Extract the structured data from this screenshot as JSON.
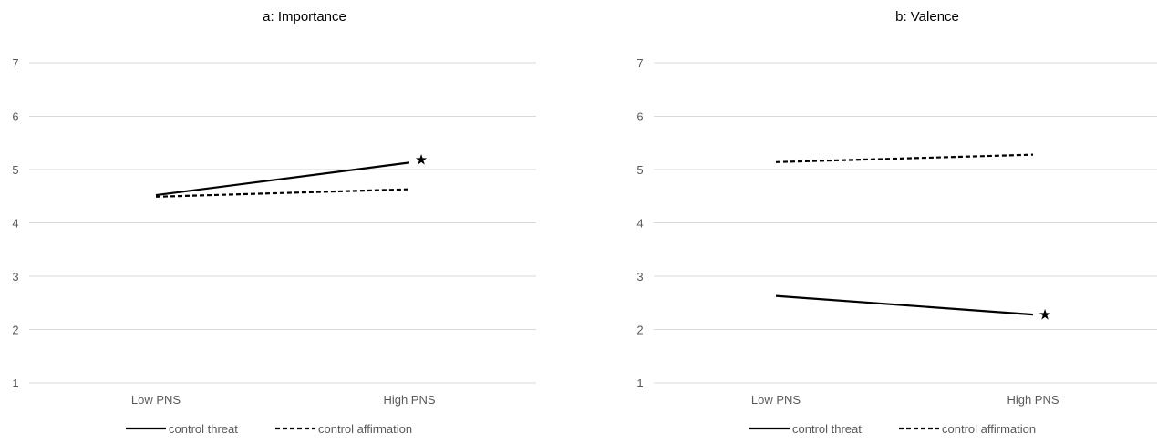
{
  "chart_data": [
    {
      "type": "line",
      "title": "a: Importance",
      "categories": [
        "Low PNS",
        "High PNS"
      ],
      "ylim": [
        1,
        7
      ],
      "yticks": [
        1,
        2,
        3,
        4,
        5,
        6,
        7
      ],
      "grid": true,
      "legend_position": "bottom",
      "series": [
        {
          "name": "control threat",
          "values": [
            4.52,
            5.13
          ],
          "style": "solid",
          "color": "#000000"
        },
        {
          "name": "control affirmation",
          "values": [
            4.49,
            4.63
          ],
          "style": "dashed",
          "color": "#000000"
        }
      ],
      "annotations": [
        {
          "text": "★",
          "category": "High PNS",
          "y": 5.2
        }
      ]
    },
    {
      "type": "line",
      "title": "b: Valence",
      "categories": [
        "Low PNS",
        "High PNS"
      ],
      "ylim": [
        1,
        7
      ],
      "yticks": [
        1,
        2,
        3,
        4,
        5,
        6,
        7
      ],
      "grid": true,
      "legend_position": "bottom",
      "series": [
        {
          "name": "control threat",
          "values": [
            2.63,
            2.28
          ],
          "style": "solid",
          "color": "#000000"
        },
        {
          "name": "control affirmation",
          "values": [
            5.14,
            5.28
          ],
          "style": "dashed",
          "color": "#000000"
        }
      ],
      "annotations": [
        {
          "text": "★",
          "category": "High PNS",
          "y": 2.29
        }
      ]
    }
  ]
}
